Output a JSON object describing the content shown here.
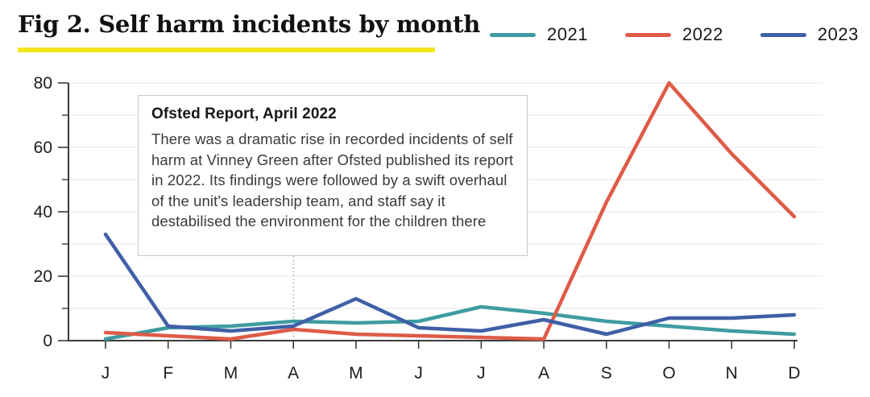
{
  "header": {
    "title": "Fig 2. Self harm incidents by month"
  },
  "legend": [
    {
      "label": "2021",
      "color": "#3E9CA1"
    },
    {
      "label": "2022",
      "color": "#DE5B47"
    },
    {
      "label": "2023",
      "color": "#3F5FA7"
    }
  ],
  "annotation": {
    "title": "Ofsted Report, April 2022",
    "body": "There was a dramatic rise in recorded incidents of self harm at Vinney Green after Ofsted published its report in 2022. Its findings were followed by a swift overhaul of the unit's leadership team, and staff say it destabilised the environment for the children there"
  },
  "chart_data": {
    "type": "line",
    "title": "Fig 2. Self harm incidents by month",
    "categories": [
      "J",
      "F",
      "M",
      "A",
      "M",
      "J",
      "J",
      "A",
      "S",
      "O",
      "N",
      "D"
    ],
    "series": [
      {
        "name": "2021",
        "color": "#3E9CA1",
        "values": [
          0.5,
          4,
          4.5,
          6,
          5.5,
          6,
          10.5,
          8.5,
          6,
          4.5,
          3,
          2
        ]
      },
      {
        "name": "2022",
        "color": "#DE5B47",
        "values": [
          2.5,
          1.5,
          0.5,
          3.5,
          2,
          1.5,
          1,
          0.5,
          43,
          80,
          58,
          38.5
        ]
      },
      {
        "name": "2023",
        "color": "#3F5FA7",
        "values": [
          33,
          4.5,
          3,
          4.5,
          13,
          4,
          3,
          6.5,
          2,
          7,
          7,
          8
        ]
      }
    ],
    "ylim": [
      0,
      80
    ],
    "yticks": [
      0,
      20,
      40,
      60,
      80
    ],
    "minor_yticks": [
      10,
      30,
      50,
      70
    ],
    "grid": true,
    "legend_position": "top-right",
    "annotation_marker_category_index": 3,
    "colors": {
      "axis": "#3b3b3b",
      "gridline": "#e9e9ed",
      "tick_label": "#1c1c1c",
      "highlight_underline": "#f2e71d",
      "annotation_guide": "#9a9a9a"
    }
  }
}
